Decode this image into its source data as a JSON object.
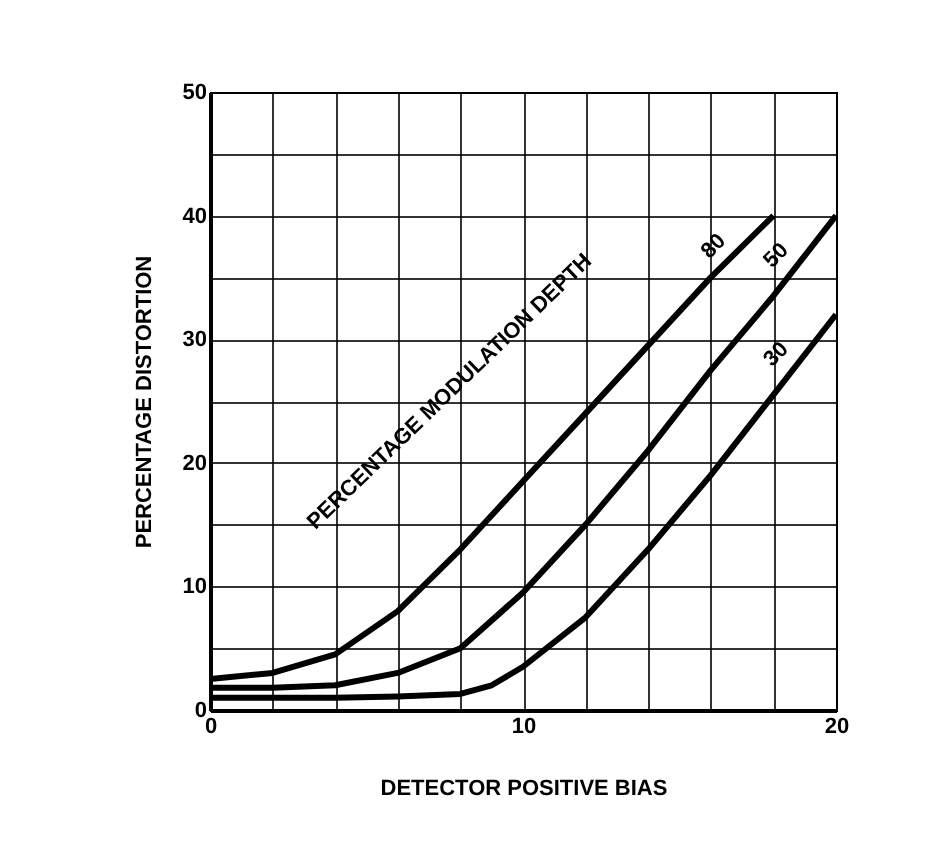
{
  "chart_data": {
    "type": "line",
    "xlabel": "DETECTOR POSITIVE BIAS",
    "ylabel": "PERCENTAGE DISTORTION",
    "annotations": [
      "PERCENTAGE MODULATION DEPTH"
    ],
    "xlim": [
      0,
      20
    ],
    "ylim": [
      0,
      50
    ],
    "xticks": [
      0,
      {
        "value": 2,
        "label": null
      },
      {
        "value": 4,
        "label": null
      },
      {
        "value": 6,
        "label": null
      },
      {
        "value": 8,
        "label": null
      },
      10,
      {
        "value": 12,
        "label": null
      },
      {
        "value": 14,
        "label": null
      },
      {
        "value": 16,
        "label": null
      },
      {
        "value": 18,
        "label": null
      },
      20
    ],
    "yticks": [
      0,
      {
        "value": 5,
        "label": null
      },
      10,
      {
        "value": 15,
        "label": null
      },
      20,
      {
        "value": 25,
        "label": null
      },
      30,
      {
        "value": 35,
        "label": null
      },
      40,
      {
        "value": 45,
        "label": null
      },
      50
    ],
    "grid": true,
    "line_style": "solid",
    "series": [
      {
        "name": "80",
        "color": "#000000",
        "x": [
          0,
          2,
          4,
          6,
          8,
          10,
          12,
          14,
          16,
          18
        ],
        "values": [
          2.5,
          3,
          4.5,
          8,
          13,
          18.5,
          24,
          29.5,
          35,
          40
        ]
      },
      {
        "name": "50",
        "color": "#000000",
        "x": [
          0,
          2,
          4,
          6,
          8,
          10,
          12,
          14,
          16,
          18,
          20
        ],
        "values": [
          1.8,
          1.8,
          2,
          3,
          5,
          9.5,
          15,
          21,
          27.5,
          33.5,
          40
        ]
      },
      {
        "name": "30",
        "color": "#000000",
        "x": [
          0,
          2,
          4,
          6,
          8,
          9,
          10,
          12,
          14,
          16,
          18,
          20
        ],
        "values": [
          1,
          1,
          1,
          1.1,
          1.3,
          2,
          3.5,
          7.5,
          13,
          19,
          25.5,
          32
        ]
      }
    ]
  }
}
